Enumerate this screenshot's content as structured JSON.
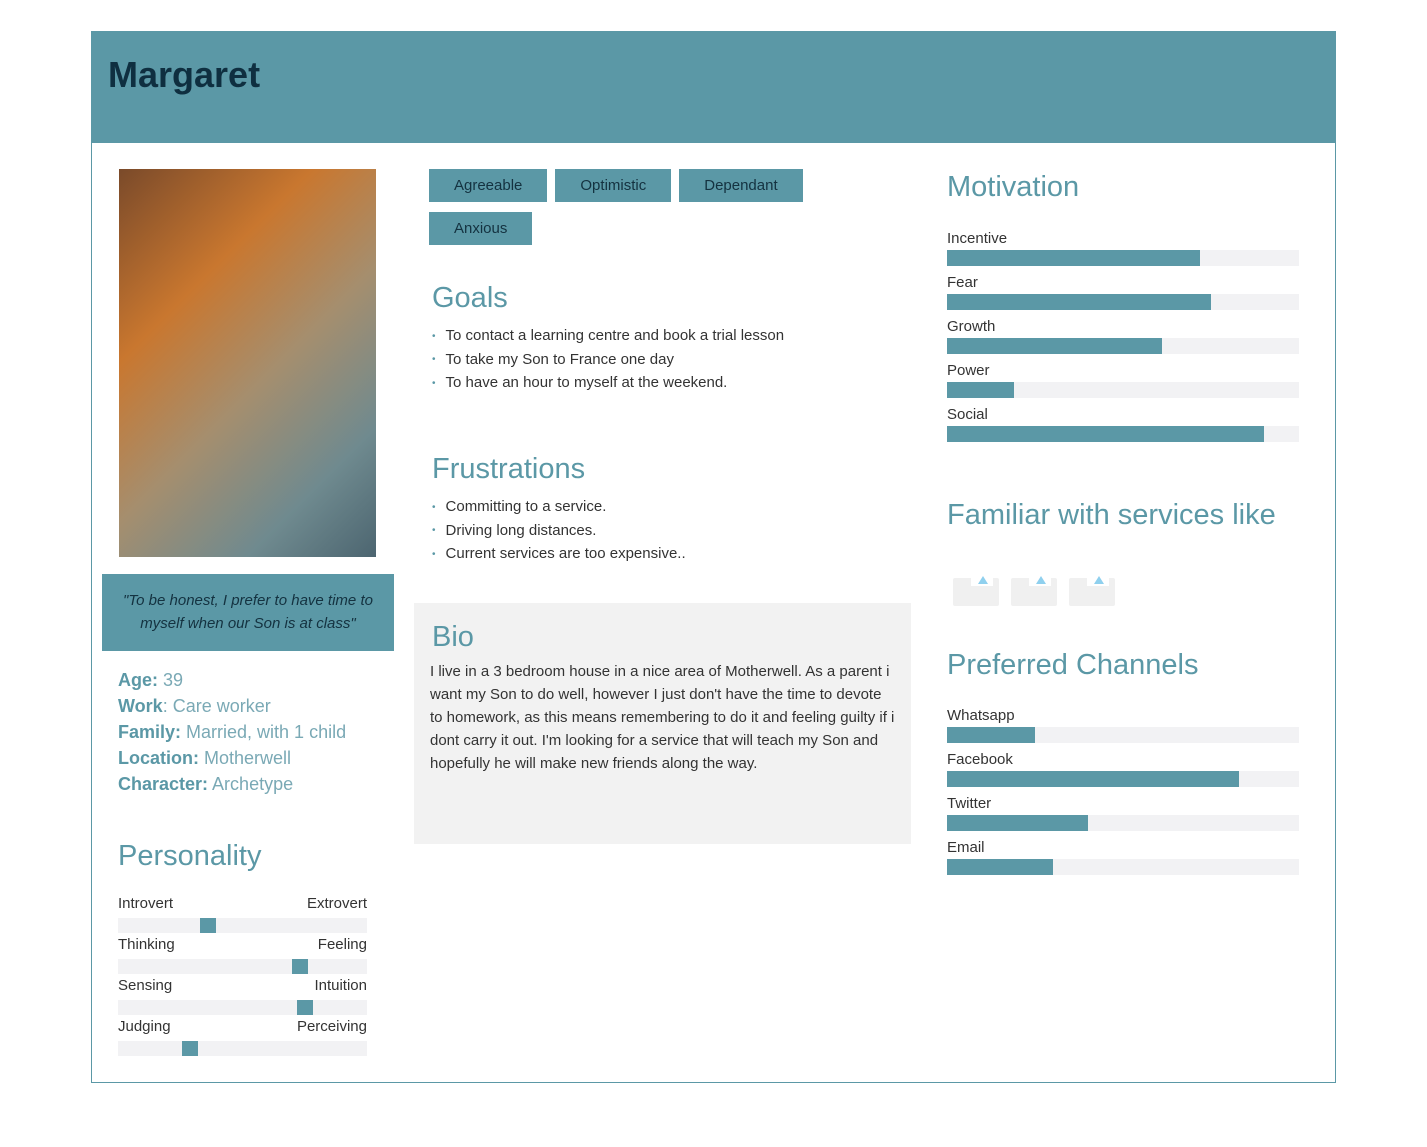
{
  "name": "Margaret",
  "quote": "\"To be honest, I prefer to have time to myself when our Son is at class\"",
  "facts": [
    {
      "label": "Age:",
      "value": " 39"
    },
    {
      "label": "Work",
      "value": ": Care worker"
    },
    {
      "label": "Family:",
      "value": " Married, with 1 child"
    },
    {
      "label": "Location:",
      "value": " Motherwell"
    },
    {
      "label": "Character:",
      "value": " Archetype"
    }
  ],
  "personality": {
    "title": "Personality",
    "items": [
      {
        "left": "Introvert",
        "right": "Extrovert",
        "value": 0.36
      },
      {
        "left": "Thinking",
        "right": "Feeling",
        "value": 0.73
      },
      {
        "left": "Sensing",
        "right": "Intuition",
        "value": 0.75
      },
      {
        "left": "Judging",
        "right": "Perceiving",
        "value": 0.29
      }
    ]
  },
  "tags": [
    "Agreeable",
    "Optimistic",
    "Dependant",
    "Anxious"
  ],
  "goals": {
    "title": "Goals",
    "items": [
      "To contact a learning centre and book a trial lesson",
      "To take my Son to France one day",
      "To have an hour to myself at the weekend."
    ]
  },
  "frustrations": {
    "title": "Frustrations",
    "items": [
      "Committing to a service.",
      "Driving long distances.",
      "Current services are too expensive.."
    ]
  },
  "bio": {
    "title": "Bio",
    "text": "I live in a 3 bedroom house in a nice area of Motherwell. As a parent i want my Son to do well, however I just don't have the time to devote to homework, as this means remembering to do it and feeling guilty if i dont carry it out. I'm looking for a service that will teach my Son and hopefully he will make new friends along the way."
  },
  "motivation": {
    "title": "Motivation",
    "items": [
      {
        "label": "Incentive",
        "value": 0.72
      },
      {
        "label": "Fear",
        "value": 0.75
      },
      {
        "label": "Growth",
        "value": 0.61
      },
      {
        "label": "Power",
        "value": 0.19
      },
      {
        "label": "Social",
        "value": 0.9
      }
    ]
  },
  "familiar": {
    "title": "Familiar with services like",
    "icons": [
      "image-placeholder-icon",
      "image-placeholder-icon",
      "image-placeholder-icon"
    ]
  },
  "channels": {
    "title": "Preferred Channels",
    "items": [
      {
        "label": "Whatsapp",
        "value": 0.25
      },
      {
        "label": "Facebook",
        "value": 0.83
      },
      {
        "label": "Twitter",
        "value": 0.4
      },
      {
        "label": "Email",
        "value": 0.3
      }
    ]
  },
  "colors": {
    "accent": "#5b98a6",
    "dark": "#0f2f40",
    "track": "#f2f2f4"
  }
}
